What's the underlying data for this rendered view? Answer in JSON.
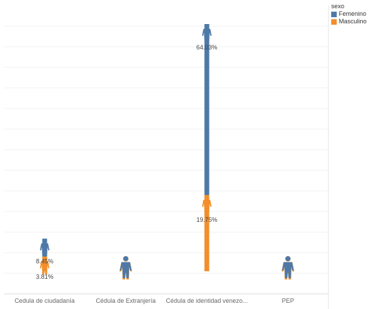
{
  "chart_data": {
    "type": "bar",
    "categories": [
      "Cedula de ciudadanía",
      "Cédula de Extranjería",
      "Cédula de identidad venezo...",
      "PEP"
    ],
    "series": [
      {
        "name": "Femenino",
        "values": [
          8.45,
          0.4,
          64.03,
          0.3
        ],
        "labels": [
          "8.45%",
          "",
          "64.03%",
          ""
        ]
      },
      {
        "name": "Masculino",
        "values": [
          3.81,
          0.2,
          19.75,
          0.15
        ],
        "labels": [
          "3.81%",
          "",
          "19.75%",
          ""
        ]
      }
    ],
    "ylim": [
      0,
      70
    ],
    "grid": true,
    "legend": {
      "title": "sexo",
      "placement": "top-right"
    },
    "colors": {
      "Femenino": "#4e79a7",
      "Masculino": "#f28e2b"
    },
    "icon": "person-icon"
  }
}
